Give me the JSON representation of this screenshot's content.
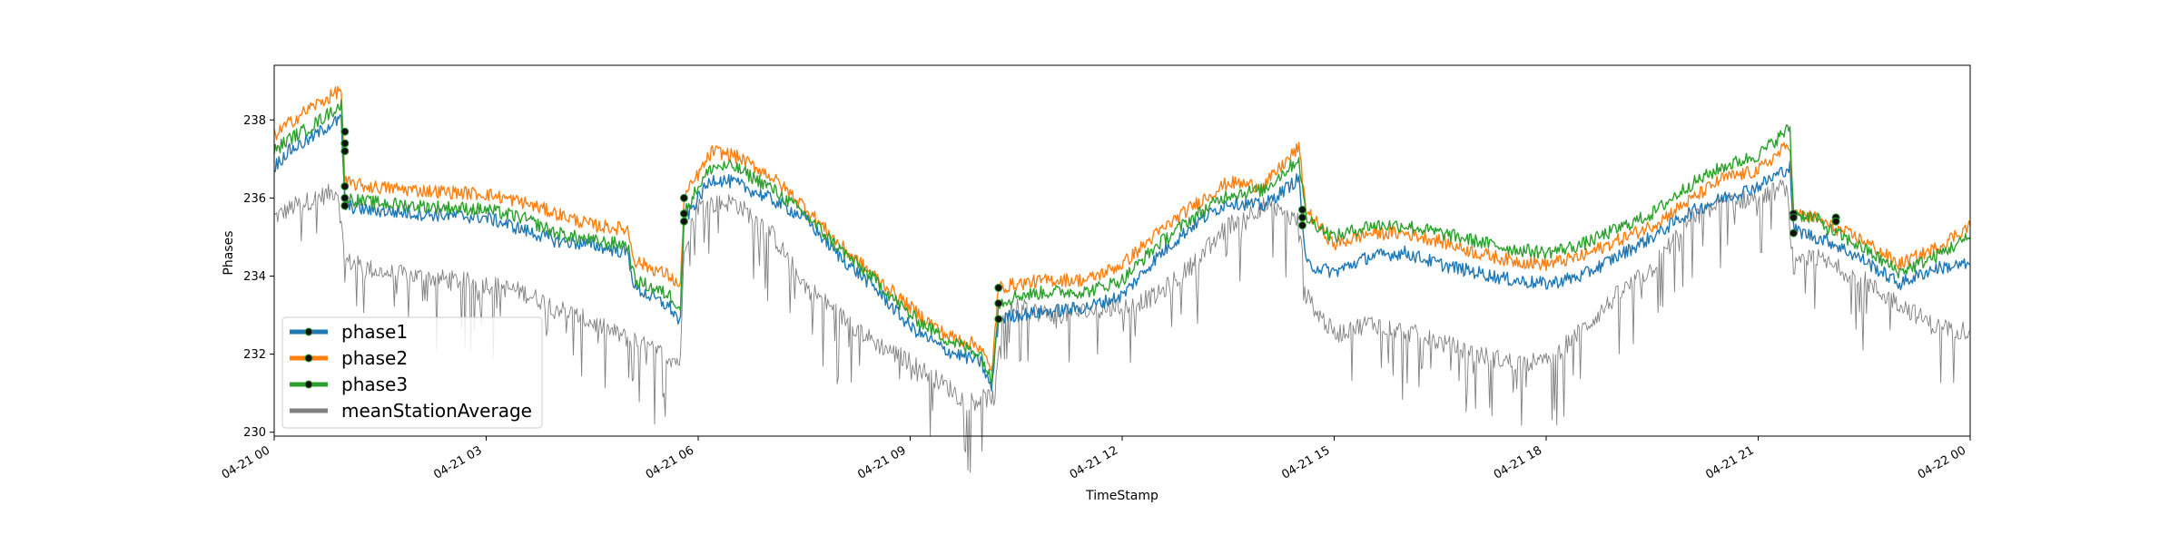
{
  "chart_data": {
    "type": "line",
    "xlabel": "TimeStamp",
    "ylabel": "Phases",
    "xlim": [
      0,
      24
    ],
    "ylim": [
      229.9,
      239.4
    ],
    "x_tick_values": [
      0,
      3,
      6,
      9,
      12,
      15,
      18,
      21,
      24
    ],
    "x_tick_labels": [
      "04-21 00",
      "04-21 03",
      "04-21 06",
      "04-21 09",
      "04-21 12",
      "04-21 15",
      "04-21 18",
      "04-21 21",
      "04-22 00"
    ],
    "y_ticks": [
      230,
      232,
      234,
      236,
      238
    ],
    "grid": false,
    "legend_position": "lower-left",
    "series": [
      {
        "name": "phase1",
        "color": "#1f77b4",
        "x": [
          0,
          0.2,
          0.5,
          0.8,
          0.95,
          1.0,
          1.3,
          2.0,
          3.0,
          3.5,
          4.0,
          4.5,
          5.0,
          5.1,
          5.6,
          5.75,
          5.8,
          6.0,
          6.2,
          6.5,
          7.0,
          7.5,
          8.0,
          8.5,
          9.0,
          9.5,
          10.0,
          10.15,
          10.25,
          10.5,
          11.0,
          11.5,
          12.0,
          12.5,
          13.0,
          13.5,
          14.0,
          14.5,
          14.6,
          15.0,
          15.5,
          16.0,
          16.5,
          17.0,
          17.5,
          18.0,
          18.5,
          19.0,
          19.5,
          20.0,
          20.5,
          21.0,
          21.45,
          21.5,
          21.8,
          22.0,
          22.5,
          23.0,
          23.5,
          24.0
        ],
        "y": [
          236.8,
          237.2,
          237.5,
          237.9,
          238.0,
          235.8,
          235.7,
          235.6,
          235.5,
          235.2,
          234.9,
          234.8,
          234.6,
          233.7,
          233.2,
          232.8,
          235.4,
          236.0,
          236.5,
          236.4,
          236.0,
          235.5,
          234.5,
          233.7,
          232.7,
          232.1,
          231.8,
          231.1,
          232.9,
          233.0,
          233.1,
          233.2,
          233.5,
          234.5,
          235.3,
          235.9,
          235.8,
          236.5,
          234.3,
          234.1,
          234.5,
          234.6,
          234.3,
          234.1,
          233.9,
          233.8,
          234.0,
          234.5,
          235.0,
          235.6,
          236.0,
          236.3,
          236.8,
          235.2,
          235.0,
          234.9,
          234.4,
          233.8,
          234.2,
          234.3
        ]
      },
      {
        "name": "phase2",
        "color": "#ff7f0e",
        "x": [
          0,
          0.2,
          0.5,
          0.8,
          0.95,
          1.0,
          1.3,
          2.0,
          3.0,
          3.5,
          4.0,
          4.5,
          5.0,
          5.1,
          5.6,
          5.75,
          5.8,
          6.0,
          6.2,
          6.5,
          7.0,
          7.5,
          8.0,
          8.5,
          9.0,
          9.5,
          10.0,
          10.15,
          10.25,
          10.5,
          11.0,
          11.5,
          12.0,
          12.5,
          13.0,
          13.5,
          14.0,
          14.5,
          14.6,
          15.0,
          15.5,
          16.0,
          16.5,
          17.0,
          17.5,
          18.0,
          18.5,
          19.0,
          19.5,
          20.0,
          20.5,
          21.0,
          21.45,
          21.5,
          21.8,
          22.0,
          22.5,
          23.0,
          23.5,
          24.0
        ],
        "y": [
          237.6,
          237.9,
          238.3,
          238.6,
          238.8,
          236.4,
          236.3,
          236.2,
          236.1,
          235.9,
          235.6,
          235.3,
          235.2,
          234.4,
          234.0,
          233.7,
          236.0,
          236.6,
          237.2,
          237.1,
          236.6,
          235.8,
          234.8,
          234.0,
          233.2,
          232.5,
          232.2,
          231.5,
          233.7,
          233.8,
          233.9,
          233.9,
          234.3,
          235.1,
          235.8,
          236.4,
          236.3,
          237.3,
          235.7,
          234.8,
          235.1,
          235.1,
          234.9,
          234.6,
          234.4,
          234.3,
          234.5,
          234.9,
          235.3,
          235.9,
          236.5,
          236.7,
          237.4,
          235.6,
          235.5,
          235.3,
          234.9,
          234.3,
          234.7,
          235.3
        ]
      },
      {
        "name": "phase3",
        "color": "#2ca02c",
        "x": [
          0,
          0.2,
          0.5,
          0.8,
          0.95,
          1.0,
          1.3,
          2.0,
          3.0,
          3.5,
          4.0,
          4.5,
          5.0,
          5.1,
          5.6,
          5.75,
          5.8,
          6.0,
          6.2,
          6.5,
          7.0,
          7.5,
          8.0,
          8.5,
          9.0,
          9.5,
          10.0,
          10.15,
          10.25,
          10.5,
          11.0,
          11.5,
          12.0,
          12.5,
          13.0,
          13.5,
          14.0,
          14.5,
          14.6,
          15.0,
          15.5,
          16.0,
          16.5,
          17.0,
          17.5,
          18.0,
          18.5,
          19.0,
          19.5,
          20.0,
          20.5,
          21.0,
          21.45,
          21.5,
          21.8,
          22.0,
          22.5,
          23.0,
          23.5,
          24.0
        ],
        "y": [
          237.2,
          237.5,
          237.8,
          238.2,
          238.4,
          236.0,
          235.9,
          235.8,
          235.7,
          235.5,
          235.1,
          234.9,
          234.8,
          233.9,
          233.5,
          233.2,
          235.6,
          236.3,
          236.8,
          236.8,
          236.3,
          235.6,
          234.7,
          233.9,
          233.0,
          232.4,
          232.0,
          231.3,
          233.3,
          233.5,
          233.6,
          233.6,
          233.9,
          234.8,
          235.5,
          236.1,
          236.2,
          237.0,
          235.5,
          235.0,
          235.3,
          235.3,
          235.1,
          234.9,
          234.7,
          234.6,
          234.8,
          235.2,
          235.6,
          236.3,
          236.8,
          237.1,
          237.8,
          235.6,
          235.5,
          235.2,
          234.7,
          234.1,
          234.5,
          235.0
        ]
      },
      {
        "name": "meanStationAverage",
        "color": "#808080",
        "x": [
          0,
          0.3,
          0.6,
          0.9,
          1.0,
          1.5,
          2.0,
          2.5,
          3.0,
          3.5,
          4.0,
          4.5,
          5.0,
          5.5,
          5.75,
          5.8,
          6.0,
          6.5,
          7.0,
          7.5,
          8.0,
          8.5,
          9.0,
          9.5,
          9.8,
          10.2,
          10.3,
          10.5,
          11.0,
          11.5,
          12.0,
          12.5,
          13.0,
          13.5,
          14.0,
          14.5,
          14.6,
          15.0,
          15.5,
          16.0,
          16.5,
          17.0,
          17.5,
          18.0,
          18.5,
          19.0,
          19.5,
          20.0,
          20.5,
          21.0,
          21.4,
          21.5,
          21.8,
          22.0,
          22.5,
          22.7,
          23.0,
          23.5,
          24.0
        ],
        "y": [
          235.5,
          235.8,
          236.0,
          236.2,
          234.4,
          234.1,
          234.0,
          233.9,
          233.8,
          233.6,
          233.2,
          232.8,
          232.4,
          232.0,
          231.8,
          234.8,
          235.8,
          235.9,
          235.2,
          233.8,
          233.0,
          232.3,
          231.8,
          231.2,
          230.8,
          230.9,
          233.0,
          233.2,
          233.0,
          233.1,
          233.2,
          233.5,
          234.3,
          235.3,
          235.8,
          235.4,
          233.5,
          232.5,
          232.8,
          232.6,
          232.3,
          232.0,
          231.8,
          231.8,
          232.6,
          233.5,
          234.2,
          235.4,
          235.9,
          236.0,
          236.3,
          234.2,
          234.5,
          234.3,
          233.9,
          233.6,
          233.3,
          232.7,
          232.6
        ]
      }
    ],
    "markers": [
      {
        "x": 1.0,
        "y": 237.7
      },
      {
        "x": 1.0,
        "y": 237.4
      },
      {
        "x": 1.0,
        "y": 237.2
      },
      {
        "x": 1.0,
        "y": 236.3
      },
      {
        "x": 1.0,
        "y": 236.0
      },
      {
        "x": 1.0,
        "y": 235.8
      },
      {
        "x": 5.8,
        "y": 236.0
      },
      {
        "x": 5.8,
        "y": 235.6
      },
      {
        "x": 5.8,
        "y": 235.4
      },
      {
        "x": 10.25,
        "y": 233.7
      },
      {
        "x": 10.25,
        "y": 233.3
      },
      {
        "x": 10.25,
        "y": 232.9
      },
      {
        "x": 14.55,
        "y": 235.7
      },
      {
        "x": 14.55,
        "y": 235.5
      },
      {
        "x": 14.55,
        "y": 235.3
      },
      {
        "x": 21.5,
        "y": 235.6
      },
      {
        "x": 21.5,
        "y": 235.5
      },
      {
        "x": 21.5,
        "y": 235.1
      },
      {
        "x": 22.1,
        "y": 235.5
      },
      {
        "x": 22.1,
        "y": 235.4
      }
    ]
  }
}
